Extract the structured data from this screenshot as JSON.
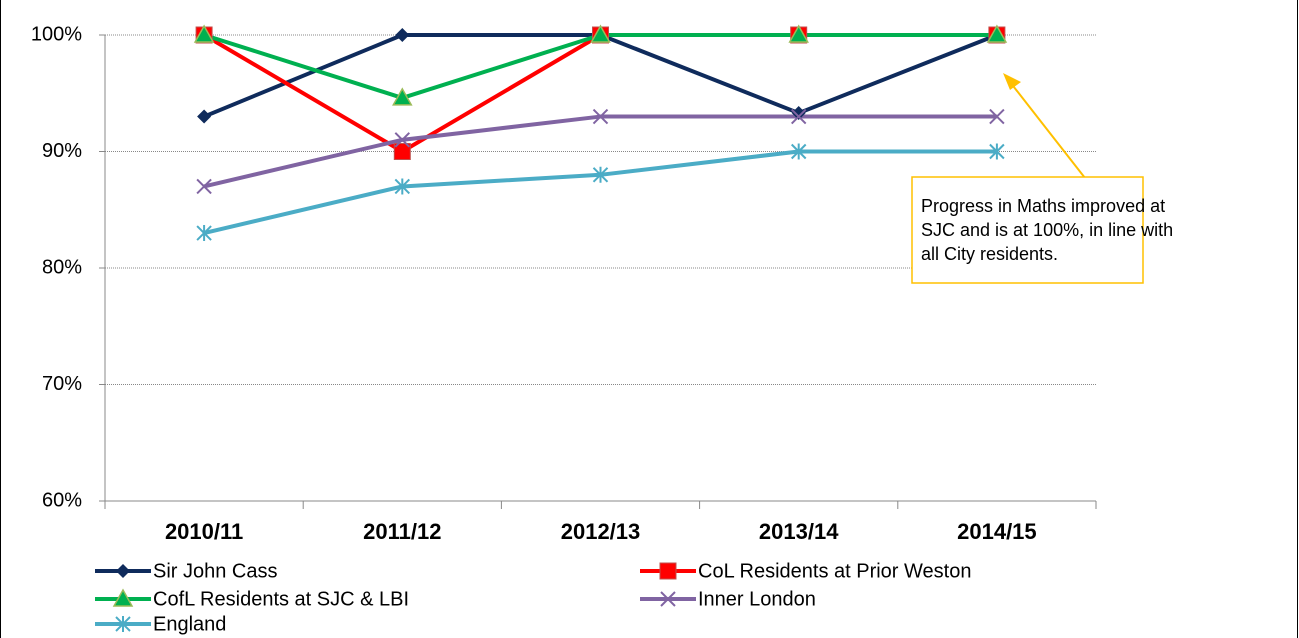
{
  "chart_data": {
    "type": "line",
    "categories": [
      "2010/11",
      "2011/12",
      "2012/13",
      "2013/14",
      "2014/15"
    ],
    "series": [
      {
        "name": "Sir John Cass",
        "color": "#0f2b5c",
        "marker": "diamond",
        "values": [
          93,
          100,
          100,
          93.3,
          100
        ]
      },
      {
        "name": "CoL Residents at Prior Weston",
        "color": "#ff0000",
        "marker": "square",
        "values": [
          100,
          90,
          100,
          100,
          100
        ]
      },
      {
        "name": "CofL Residents at SJC & LBI",
        "color": "#00b050",
        "marker": "triangle",
        "values": [
          100,
          94.6,
          100,
          100,
          100
        ]
      },
      {
        "name": "Inner London",
        "color": "#8064a2",
        "marker": "x",
        "values": [
          87,
          91,
          93,
          93,
          93
        ]
      },
      {
        "name": "England",
        "color": "#4bacc6",
        "marker": "star",
        "values": [
          83,
          87,
          88,
          90,
          90
        ]
      }
    ],
    "ylim": [
      60,
      100
    ],
    "yticks": [
      {
        "value": 60,
        "label": "60%"
      },
      {
        "value": 70,
        "label": "70%"
      },
      {
        "value": 80,
        "label": "80%"
      },
      {
        "value": 90,
        "label": "90%"
      },
      {
        "value": 100,
        "label": "100%"
      }
    ],
    "grid": true,
    "legend": "bottom",
    "annotation": {
      "lines": [
        "Progress in Maths improved at",
        "SJC and is at 100%, in line with",
        "all City residents."
      ],
      "color": "#ffc000"
    }
  }
}
